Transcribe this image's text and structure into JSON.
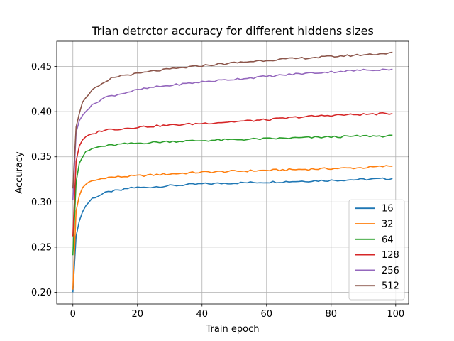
{
  "chart_data": {
    "type": "line",
    "title": "Trian detrctor accuracy for different hiddens sizes",
    "xlabel": "Train epoch",
    "ylabel": "Accuracy",
    "xlim": [
      -5,
      104
    ],
    "ylim": [
      0.187,
      0.478
    ],
    "xticks": [
      0,
      20,
      40,
      60,
      80,
      100
    ],
    "yticks": [
      0.2,
      0.25,
      0.3,
      0.35,
      0.4,
      0.45
    ],
    "grid": true,
    "legend_position": "lower-right",
    "epochs": 100,
    "series": [
      {
        "name": "16",
        "color": "#1f77b4",
        "keypoints": [
          [
            0,
            0.2
          ],
          [
            1,
            0.262
          ],
          [
            2,
            0.279
          ],
          [
            3,
            0.289
          ],
          [
            4,
            0.296
          ],
          [
            5,
            0.3
          ],
          [
            6,
            0.304
          ],
          [
            8,
            0.307
          ],
          [
            10,
            0.31
          ],
          [
            12,
            0.312
          ],
          [
            15,
            0.313
          ],
          [
            18,
            0.316
          ],
          [
            22,
            0.316
          ],
          [
            30,
            0.318
          ],
          [
            40,
            0.32
          ],
          [
            50,
            0.321
          ],
          [
            60,
            0.322
          ],
          [
            70,
            0.323
          ],
          [
            80,
            0.324
          ],
          [
            90,
            0.325
          ],
          [
            99,
            0.326
          ]
        ]
      },
      {
        "name": "32",
        "color": "#ff7f0e",
        "keypoints": [
          [
            0,
            0.203
          ],
          [
            1,
            0.29
          ],
          [
            2,
            0.307
          ],
          [
            3,
            0.316
          ],
          [
            4,
            0.32
          ],
          [
            6,
            0.323
          ],
          [
            8,
            0.325
          ],
          [
            10,
            0.327
          ],
          [
            15,
            0.328
          ],
          [
            20,
            0.329
          ],
          [
            30,
            0.331
          ],
          [
            40,
            0.333
          ],
          [
            50,
            0.334
          ],
          [
            60,
            0.335
          ],
          [
            70,
            0.336
          ],
          [
            80,
            0.337
          ],
          [
            90,
            0.338
          ],
          [
            99,
            0.34
          ]
        ]
      },
      {
        "name": "64",
        "color": "#2ca02c",
        "keypoints": [
          [
            0,
            0.241
          ],
          [
            1,
            0.322
          ],
          [
            2,
            0.343
          ],
          [
            3,
            0.35
          ],
          [
            4,
            0.355
          ],
          [
            6,
            0.359
          ],
          [
            8,
            0.361
          ],
          [
            10,
            0.362
          ],
          [
            15,
            0.364
          ],
          [
            20,
            0.365
          ],
          [
            30,
            0.367
          ],
          [
            40,
            0.368
          ],
          [
            50,
            0.369
          ],
          [
            60,
            0.37
          ],
          [
            70,
            0.371
          ],
          [
            80,
            0.372
          ],
          [
            90,
            0.373
          ],
          [
            99,
            0.373
          ]
        ]
      },
      {
        "name": "128",
        "color": "#d62728",
        "keypoints": [
          [
            0,
            0.262
          ],
          [
            1,
            0.345
          ],
          [
            2,
            0.362
          ],
          [
            3,
            0.368
          ],
          [
            4,
            0.372
          ],
          [
            6,
            0.375
          ],
          [
            8,
            0.378
          ],
          [
            10,
            0.38
          ],
          [
            15,
            0.381
          ],
          [
            20,
            0.383
          ],
          [
            30,
            0.385
          ],
          [
            40,
            0.387
          ],
          [
            50,
            0.389
          ],
          [
            60,
            0.391
          ],
          [
            70,
            0.394
          ],
          [
            80,
            0.396
          ],
          [
            90,
            0.397
          ],
          [
            99,
            0.398
          ]
        ]
      },
      {
        "name": "256",
        "color": "#9467bd",
        "keypoints": [
          [
            0,
            0.302
          ],
          [
            1,
            0.377
          ],
          [
            2,
            0.39
          ],
          [
            3,
            0.397
          ],
          [
            4,
            0.401
          ],
          [
            6,
            0.407
          ],
          [
            8,
            0.412
          ],
          [
            10,
            0.416
          ],
          [
            15,
            0.42
          ],
          [
            20,
            0.424
          ],
          [
            25,
            0.427
          ],
          [
            30,
            0.429
          ],
          [
            40,
            0.433
          ],
          [
            50,
            0.436
          ],
          [
            60,
            0.439
          ],
          [
            70,
            0.442
          ],
          [
            80,
            0.444
          ],
          [
            90,
            0.446
          ],
          [
            99,
            0.447
          ]
        ]
      },
      {
        "name": "512",
        "color": "#8c564b",
        "keypoints": [
          [
            0,
            0.315
          ],
          [
            1,
            0.383
          ],
          [
            2,
            0.398
          ],
          [
            3,
            0.41
          ],
          [
            4,
            0.416
          ],
          [
            6,
            0.424
          ],
          [
            8,
            0.428
          ],
          [
            10,
            0.432
          ],
          [
            12,
            0.437
          ],
          [
            15,
            0.44
          ],
          [
            20,
            0.442
          ],
          [
            25,
            0.445
          ],
          [
            30,
            0.447
          ],
          [
            40,
            0.451
          ],
          [
            50,
            0.454
          ],
          [
            60,
            0.457
          ],
          [
            70,
            0.459
          ],
          [
            80,
            0.461
          ],
          [
            90,
            0.463
          ],
          [
            99,
            0.465
          ]
        ]
      }
    ]
  }
}
